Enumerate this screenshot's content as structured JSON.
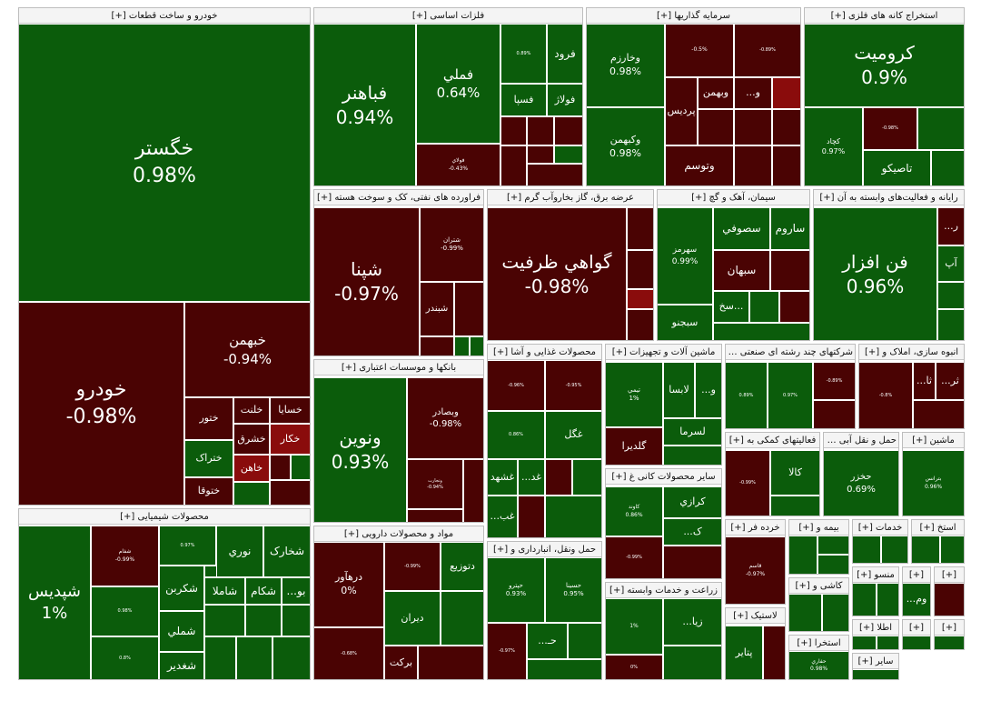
{
  "sectors": [
    {
      "title": "خودرو و ساخت قطعات [+]",
      "tiles": [
        {
          "label": "خگستر",
          "change": "0.98%",
          "color": "#0b5c0b"
        },
        {
          "label": "خودرو",
          "change": "-0.98%",
          "color": "#4a0303"
        },
        {
          "label": "خبهمن",
          "change": "-0.94%",
          "color": "#4a0303"
        },
        {
          "label": "ختور",
          "color": "#4a0303"
        },
        {
          "label": "خلنت",
          "color": "#4a0303"
        },
        {
          "label": "خسایا",
          "color": "#4a0303"
        },
        {
          "label": "خشرق",
          "color": "#4a0303"
        },
        {
          "label": "خکار",
          "color": "#8a0c0c"
        },
        {
          "label": "ختراک",
          "color": "#0b5c0b"
        },
        {
          "label": "خاهن",
          "color": "#8a0c0c"
        },
        {
          "label": "ختوقا",
          "color": "#4a0303"
        }
      ]
    },
    {
      "title": "محصولات شیمیایی [+]",
      "tiles": [
        {
          "label": "شپدیس",
          "change": "1%",
          "color": "#0b5c0b"
        },
        {
          "label": "شفام",
          "change": "-0.99%",
          "color": "#4a0303"
        },
        {
          "change": "0.98%",
          "color": "#0b5c0b"
        },
        {
          "change": "0.8%",
          "color": "#0b5c0b"
        },
        {
          "change": "0.97%",
          "color": "#0b5c0b"
        },
        {
          "label": "نوري",
          "color": "#0b5c0b"
        },
        {
          "label": "شخارک",
          "color": "#0b5c0b"
        },
        {
          "label": "شكربن",
          "color": "#0b5c0b"
        },
        {
          "label": "شاملا",
          "color": "#0b5c0b"
        },
        {
          "label": "شکام",
          "color": "#0b5c0b"
        },
        {
          "label": "...بو",
          "color": "#0b5c0b"
        },
        {
          "label": "شملي",
          "color": "#0b5c0b"
        },
        {
          "label": "شغدير",
          "color": "#0b5c0b"
        }
      ]
    },
    {
      "title": "فلزات اساسی [+]",
      "tiles": [
        {
          "label": "فباهنر",
          "change": "0.94%",
          "color": "#0b5c0b"
        },
        {
          "label": "فملي",
          "change": "0.64%",
          "color": "#0b5c0b"
        },
        {
          "label": "فولاي",
          "change": "-0.43%",
          "color": "#4a0303"
        },
        {
          "label": "فرود",
          "color": "#0b5c0b"
        },
        {
          "change": "0.89%",
          "color": "#0b5c0b"
        },
        {
          "label": "فسپا",
          "color": "#0b5c0b"
        },
        {
          "label": "فولاژ",
          "color": "#0b5c0b"
        }
      ]
    },
    {
      "title": "سرمایه گذاریها [+]",
      "tiles": [
        {
          "label": "وخارزم",
          "change": "0.98%",
          "color": "#0b5c0b"
        },
        {
          "label": "وکبهمن",
          "change": "0.98%",
          "color": "#0b5c0b"
        },
        {
          "change": "-0.5%",
          "color": "#4a0303"
        },
        {
          "change": "-0.89%",
          "color": "#4a0303"
        },
        {
          "label": "پرديس",
          "color": "#4a0303"
        },
        {
          "label": "وبهمن",
          "color": "#4a0303"
        },
        {
          "label": "...و",
          "color": "#4a0303"
        },
        {
          "label": "وتوسم",
          "color": "#4a0303"
        }
      ]
    },
    {
      "title": "استخراج کانه های فلزی [+]",
      "tiles": [
        {
          "label": "كروميت",
          "change": "0.9%",
          "color": "#0b5c0b"
        },
        {
          "label": "کچاد",
          "change": "0.97%",
          "color": "#0b5c0b"
        },
        {
          "change": "-0.98%",
          "color": "#4a0303"
        },
        {
          "label": "تاصيكو",
          "color": "#0b5c0b"
        }
      ]
    },
    {
      "title": "فراورده های نفتی، کک و سوخت هسته [+]",
      "tiles": [
        {
          "label": "شپنا",
          "change": "-0.97%",
          "color": "#4a0303"
        },
        {
          "label": "شتران",
          "change": "-0.99%",
          "color": "#4a0303"
        },
        {
          "label": "شبندر",
          "color": "#4a0303"
        }
      ]
    },
    {
      "title": "عرضه برق، گاز بخاروآب گرم [+]",
      "tiles": [
        {
          "label": "گواهي ظرفيت",
          "change": "-0.98%",
          "color": "#4a0303"
        }
      ]
    },
    {
      "title": "سیمان، آهک و گچ [+]",
      "tiles": [
        {
          "label": "سهرمز",
          "change": "0.99%",
          "color": "#0b5c0b"
        },
        {
          "label": "سصوفي",
          "color": "#0b5c0b"
        },
        {
          "label": "ساروم",
          "color": "#0b5c0b"
        },
        {
          "label": "سبهان",
          "color": "#4a0303"
        },
        {
          "label": "سخ...",
          "color": "#0b5c0b"
        },
        {
          "label": "سبجنو",
          "color": "#0b5c0b"
        }
      ]
    },
    {
      "title": "رایانه و فعالیت‌های وابسته به آن [+]",
      "tiles": [
        {
          "label": "فن افزار",
          "change": "0.96%",
          "color": "#0b5c0b"
        },
        {
          "label": "...ر",
          "color": "#4a0303"
        },
        {
          "label": "آپ",
          "color": "#0b5c0b"
        }
      ]
    },
    {
      "title": "بانکها و موسسات اعتباری [+]",
      "tiles": [
        {
          "label": "ونوين",
          "change": "0.93%",
          "color": "#0b5c0b"
        },
        {
          "label": "وبصادر",
          "change": "-0.98%",
          "color": "#4a0303"
        },
        {
          "label": "وتجارت",
          "change": "-0.94%",
          "color": "#4a0303"
        }
      ]
    },
    {
      "title": "مواد و محصولات دارویی [+]",
      "tiles": [
        {
          "label": "درهآور",
          "change": "0%",
          "color": "#4a0303"
        },
        {
          "change": "-0.68%",
          "color": "#4a0303"
        },
        {
          "change": "-0.99%",
          "color": "#4a0303"
        },
        {
          "label": "دتوزيع",
          "color": "#0b5c0b"
        },
        {
          "label": "ديران",
          "color": "#0b5c0b"
        },
        {
          "label": "برکت",
          "color": "#4a0303"
        }
      ]
    },
    {
      "title": "محصولات غذایی و آشا [+]",
      "tiles": [
        {
          "change": "-0.96%",
          "color": "#4a0303"
        },
        {
          "change": "-0.95%",
          "color": "#4a0303"
        },
        {
          "change": "0.86%",
          "color": "#0b5c0b"
        },
        {
          "label": "غگل",
          "color": "#0b5c0b"
        },
        {
          "label": "غشهد",
          "color": "#0b5c0b"
        },
        {
          "label": "...غد",
          "color": "#0b5c0b"
        },
        {
          "label": "...غب",
          "color": "#0b5c0b"
        }
      ]
    },
    {
      "title": "ماشین آلات و تجهیزات [+]",
      "tiles": [
        {
          "label": "تيمي",
          "change": "1%",
          "color": "#0b5c0b"
        },
        {
          "label": "لابسا",
          "color": "#0b5c0b"
        },
        {
          "label": "...و",
          "color": "#0b5c0b"
        },
        {
          "label": "لسرما",
          "color": "#0b5c0b"
        },
        {
          "label": "گلديرا",
          "color": "#4a0303"
        }
      ]
    },
    {
      "title": "شرکتهای چند رشته ای صنعتی [+]",
      "tiles": [
        {
          "change": "0.89%",
          "color": "#0b5c0b"
        },
        {
          "change": "0.97%",
          "color": "#0b5c0b"
        },
        {
          "change": "-0.89%",
          "color": "#4a0303"
        }
      ]
    },
    {
      "title": "انبوه سازی، املاک و [+]",
      "tiles": [
        {
          "change": "-0.8%",
          "color": "#4a0303"
        },
        {
          "label": "...ثا",
          "color": "#4a0303"
        },
        {
          "label": "...ثر",
          "color": "#4a0303"
        }
      ]
    },
    {
      "title": "حمل ونقل، انبارداری و [+]",
      "tiles": [
        {
          "label": "حپترو",
          "change": "0.93%",
          "color": "#0b5c0b"
        },
        {
          "label": "حسينا",
          "change": "0.95%",
          "color": "#0b5c0b"
        },
        {
          "change": "-0.97%",
          "color": "#4a0303"
        },
        {
          "label": "...حـ",
          "color": "#0b5c0b"
        }
      ]
    },
    {
      "title": "سایر محصولات کانی غ [+]",
      "tiles": [
        {
          "label": "کاوند",
          "change": "0.86%",
          "color": "#0b5c0b"
        },
        {
          "label": "کرازي",
          "color": "#0b5c0b"
        },
        {
          "label": "...ک",
          "color": "#0b5c0b"
        },
        {
          "change": "-0.99%",
          "color": "#4a0303"
        }
      ]
    },
    {
      "title": "زراعت و خدمات وابسته [+]",
      "tiles": [
        {
          "change": "1%",
          "color": "#0b5c0b"
        },
        {
          "label": "...زيا",
          "color": "#0b5c0b"
        },
        {
          "change": "0%",
          "color": "#4a0303"
        }
      ]
    },
    {
      "title": "فعالیتهای کمکی به [+]",
      "tiles": [
        {
          "change": "-0.99%",
          "color": "#4a0303"
        },
        {
          "label": "کالا",
          "color": "#0b5c0b"
        }
      ]
    },
    {
      "title": "حمل و نقل آبی [+]",
      "tiles": [
        {
          "label": "حخزر",
          "change": "0.69%",
          "color": "#0b5c0b"
        }
      ]
    },
    {
      "title": "ماشین [+]",
      "tiles": [
        {
          "label": "بترانس",
          "change": "0.96%",
          "color": "#0b5c0b"
        }
      ]
    },
    {
      "title": "خرده فر [+]",
      "tiles": [
        {
          "label": "قاسم",
          "change": "-0.97%",
          "color": "#4a0303"
        }
      ]
    },
    {
      "title": "بیمه و [+]"
    },
    {
      "title": "خدمات [+]"
    },
    {
      "title": "استخ [+]"
    },
    {
      "title": "لاستیک [+]",
      "tiles": [
        {
          "label": "پتاير",
          "color": "#0b5c0b"
        }
      ]
    },
    {
      "title": "کاشی و [+]"
    },
    {
      "title": "منسو [+]"
    },
    {
      "title": "[+]",
      "tiles": [
        {
          "label": "...وم",
          "color": "#0b5c0b"
        }
      ]
    },
    {
      "title": "[+]"
    },
    {
      "title": "استخرا [+]",
      "tiles": [
        {
          "label": "حفاري",
          "change": "0.98%",
          "color": "#0b5c0b"
        }
      ]
    },
    {
      "title": "اطلا [+]"
    },
    {
      "title": "سایر [+]"
    },
    {
      "title": "[+]"
    },
    {
      "title": "[+]"
    }
  ]
}
